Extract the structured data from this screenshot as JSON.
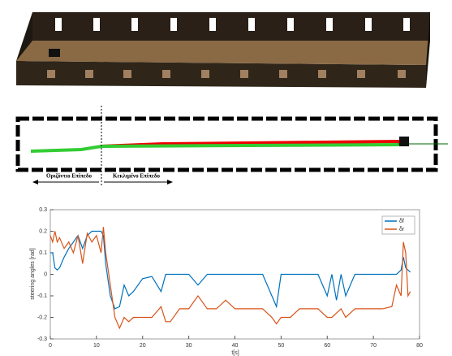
{
  "figure_labels": {
    "left_region": "Οριζόντιο Επίπεδο",
    "right_region": "Κεκλιμένο Επίπεδο"
  },
  "chart_data": {
    "type": "line",
    "xlabel": "t[s]",
    "ylabel": "steering angles [rad]",
    "x": [
      0,
      0.5,
      1,
      1.5,
      2,
      3,
      4,
      5,
      6,
      7,
      8,
      9,
      10,
      11,
      11.5,
      12,
      13,
      14,
      15,
      16,
      17,
      18,
      20,
      22,
      24,
      25,
      26,
      28,
      30,
      32,
      34,
      36,
      38,
      40,
      42,
      44,
      46,
      48,
      49,
      50,
      52,
      54,
      56,
      58,
      60,
      61,
      62,
      63,
      64,
      66,
      68,
      70,
      72,
      74,
      75,
      76,
      76.5,
      77,
      77.5,
      78
    ],
    "series": [
      {
        "name": "δf",
        "color": "#0072bd",
        "values": [
          0.1,
          0.1,
          0.03,
          0.02,
          0.03,
          0.08,
          0.12,
          0.15,
          0.18,
          0.12,
          0.18,
          0.2,
          0.2,
          0.2,
          0.18,
          0.05,
          -0.1,
          -0.16,
          -0.15,
          -0.05,
          -0.1,
          -0.08,
          -0.02,
          -0.01,
          -0.08,
          0,
          0,
          0,
          0,
          -0.05,
          0,
          0,
          0,
          0,
          0,
          0,
          0,
          -0.1,
          -0.15,
          0,
          0,
          0,
          0,
          0,
          -0.1,
          0,
          -0.12,
          0,
          -0.1,
          0,
          0,
          0,
          0,
          0,
          0,
          0.02,
          0.08,
          0.03,
          0.02,
          0.01
        ]
      },
      {
        "name": "δr",
        "color": "#d95319",
        "values": [
          0.18,
          0.15,
          0.2,
          0.15,
          0.17,
          0.12,
          0.15,
          0.1,
          0.18,
          0.05,
          0.19,
          0.15,
          0.18,
          0.1,
          0.22,
          0.1,
          -0.05,
          -0.2,
          -0.25,
          -0.2,
          -0.22,
          -0.2,
          -0.2,
          -0.2,
          -0.15,
          -0.22,
          -0.22,
          -0.16,
          -0.16,
          -0.1,
          -0.16,
          -0.16,
          -0.12,
          -0.16,
          -0.16,
          -0.16,
          -0.16,
          -0.2,
          -0.23,
          -0.2,
          -0.2,
          -0.16,
          -0.16,
          -0.16,
          -0.2,
          -0.2,
          -0.18,
          -0.16,
          -0.2,
          -0.16,
          -0.16,
          -0.16,
          -0.16,
          -0.15,
          -0.05,
          -0.1,
          0.15,
          0.1,
          -0.1,
          -0.08
        ]
      }
    ],
    "xlim": [
      0,
      80
    ],
    "xticks": [
      0,
      10,
      20,
      30,
      40,
      50,
      60,
      70,
      80
    ],
    "ylim": [
      -0.3,
      0.3
    ],
    "yticks": [
      -0.3,
      -0.2,
      -0.1,
      0,
      0.1,
      0.2,
      0.3
    ],
    "legend": "upper right"
  }
}
